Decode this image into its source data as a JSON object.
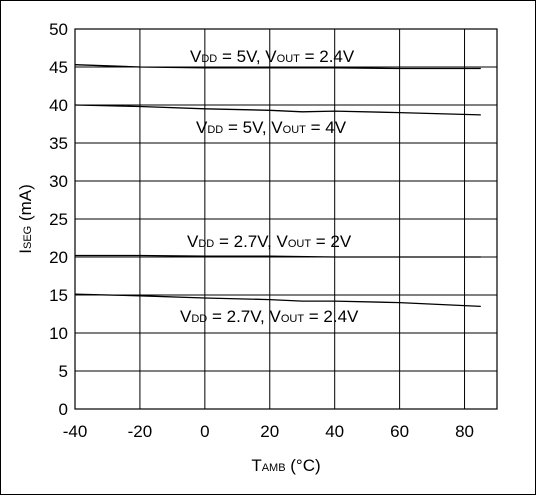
{
  "chart_data": {
    "type": "line",
    "x_ticks": [
      "-40",
      "-20",
      "0",
      "20",
      "40",
      "60",
      "80"
    ],
    "y_ticks": [
      "0",
      "5",
      "10",
      "15",
      "20",
      "25",
      "30",
      "35",
      "40",
      "45",
      "50"
    ],
    "xlim": [
      -40,
      90
    ],
    "ylim": [
      0,
      50
    ],
    "grid": true,
    "xlabel": {
      "main": "T",
      "sub": "AMB",
      "rest": " (°C)"
    },
    "ylabel": {
      "main": "I",
      "sub": "SEG",
      "rest": " (mA)"
    },
    "series": [
      {
        "x": [
          -40,
          -20,
          0,
          20,
          40,
          60,
          85
        ],
        "y": [
          45.3,
          45.0,
          44.9,
          44.9,
          44.9,
          44.8,
          44.8
        ],
        "label": {
          "vdd": "5V",
          "vout": "2.4V"
        }
      },
      {
        "x": [
          -40,
          -20,
          0,
          20,
          30,
          40,
          60,
          85
        ],
        "y": [
          40.0,
          39.8,
          39.5,
          39.3,
          39.1,
          39.2,
          39.0,
          38.7
        ],
        "label": {
          "vdd": "5V",
          "vout": "4V"
        }
      },
      {
        "x": [
          -40,
          -20,
          0,
          20,
          40,
          60,
          85
        ],
        "y": [
          20.2,
          20.2,
          20.1,
          20.1,
          20.0,
          20.0,
          20.0
        ],
        "label": {
          "vdd": "2.7V",
          "vout": "2V"
        }
      },
      {
        "x": [
          -40,
          -20,
          0,
          20,
          30,
          40,
          60,
          85
        ],
        "y": [
          15.1,
          14.9,
          14.6,
          14.4,
          14.2,
          14.2,
          14.0,
          13.5
        ],
        "label": {
          "vdd": "2.7V",
          "vout": "2.4V"
        }
      }
    ],
    "annotation_text": {
      "v": "V",
      "dd": "DD",
      "eq": " = ",
      "sep": ", ",
      "out": "OUT"
    }
  }
}
